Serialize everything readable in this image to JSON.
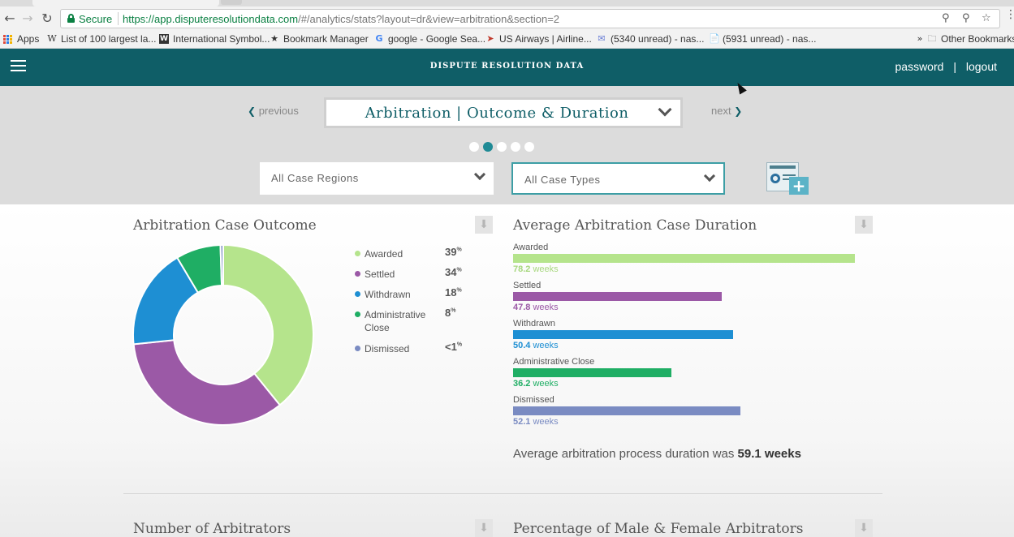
{
  "browser": {
    "secure_label": "Secure",
    "url_main": "https://app.disputeresolutiondata.com",
    "url_rest": "/#/analytics/stats?layout=dr&view=arbitration&section=2",
    "bookmarks": [
      {
        "label": "Apps",
        "icon": "apps-grid-icon"
      },
      {
        "label": "List of 100 largest la...",
        "icon": "wikipedia-icon"
      },
      {
        "label": "International Symbol...",
        "icon": "w-square-icon"
      },
      {
        "label": "Bookmark Manager",
        "icon": "star-icon"
      },
      {
        "label": "google - Google Sea...",
        "icon": "google-icon"
      },
      {
        "label": "US Airways | Airline...",
        "icon": "usairways-icon"
      },
      {
        "label": "(5340 unread) - nas...",
        "icon": "mail-icon"
      },
      {
        "label": "(5931 unread) - nas...",
        "icon": "page-icon"
      }
    ],
    "other_bookmarks": "Other Bookmarks"
  },
  "header": {
    "title": "DISPUTE RESOLUTION DATA",
    "password_link": "password",
    "separator": "|",
    "logout_link": "logout"
  },
  "controls": {
    "previous_label": "previous",
    "next_label": "next",
    "view_title": "Arbitration | Outcome & Duration",
    "page_dots": 5,
    "active_dot": 2,
    "region_filter": "All Case Regions",
    "type_filter": "All Case Types"
  },
  "outcome_panel": {
    "title": "Arbitration Case Outcome",
    "legend": [
      {
        "name": "Awarded",
        "pct": "39",
        "color": "#b5e48c"
      },
      {
        "name": "Settled",
        "pct": "34",
        "color": "#9b59a6"
      },
      {
        "name": "Withdrawn",
        "pct": "18",
        "color": "#1e8fd3"
      },
      {
        "name": "Administrative Close",
        "pct": "8",
        "color": "#1fae64"
      },
      {
        "name": "Dismissed",
        "pct": "<1",
        "color": "#7a8bc2"
      }
    ],
    "pct_suffix": "%"
  },
  "duration_panel": {
    "title": "Average Arbitration Case Duration",
    "rows": [
      {
        "name": "Awarded",
        "value": "78.2",
        "unit": "weeks",
        "color": "#b5e48c",
        "value_color": "#a7d77e"
      },
      {
        "name": "Settled",
        "value": "47.8",
        "unit": "weeks",
        "color": "#9b59a6",
        "value_color": "#9b59a6"
      },
      {
        "name": "Withdrawn",
        "value": "50.4",
        "unit": "weeks",
        "color": "#1e8fd3",
        "value_color": "#1e8fd3"
      },
      {
        "name": "Administrative Close",
        "value": "36.2",
        "unit": "weeks",
        "color": "#1fae64",
        "value_color": "#1fae64"
      },
      {
        "name": "Dismissed",
        "value": "52.1",
        "unit": "weeks",
        "color": "#7a8bc2",
        "value_color": "#7a8bc2"
      }
    ],
    "summary_text": "Average arbitration process duration was",
    "summary_value": "59.1 weeks"
  },
  "chart_data": [
    {
      "type": "pie",
      "title": "Arbitration Case Outcome",
      "categories": [
        "Awarded",
        "Settled",
        "Withdrawn",
        "Administrative Close",
        "Dismissed"
      ],
      "values": [
        39,
        34,
        18,
        8,
        0.5
      ],
      "donut": true
    },
    {
      "type": "bar",
      "orientation": "horizontal",
      "title": "Average Arbitration Case Duration",
      "categories": [
        "Awarded",
        "Settled",
        "Withdrawn",
        "Administrative Close",
        "Dismissed"
      ],
      "values": [
        78.2,
        47.8,
        50.4,
        36.2,
        52.1
      ],
      "unit": "weeks",
      "xlim": [
        0,
        78.2
      ]
    }
  ],
  "lower_panels": {
    "left_title": "Number of Arbitrators",
    "right_title": "Percentage of Male & Female Arbitrators"
  }
}
